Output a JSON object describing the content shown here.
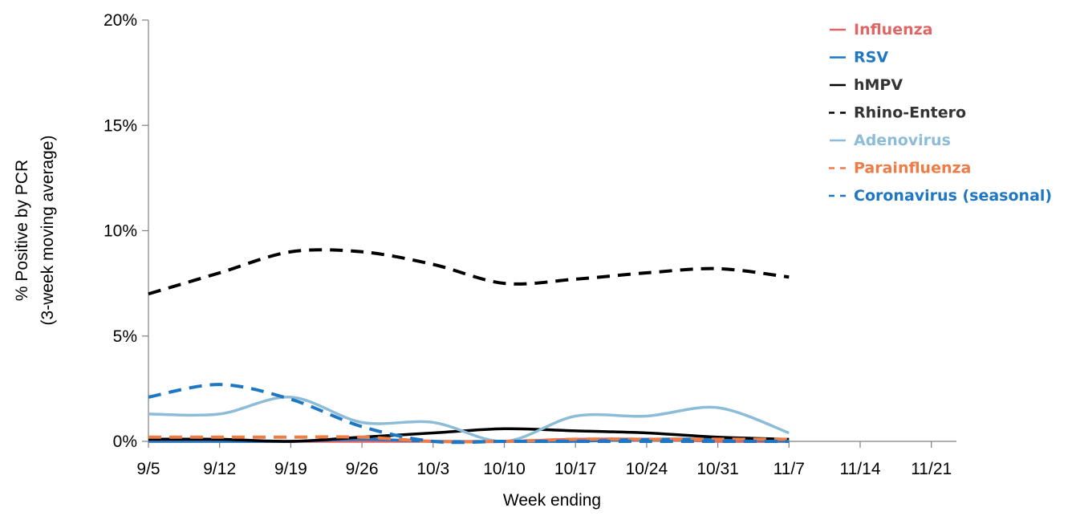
{
  "chart_data": {
    "type": "line",
    "title": "",
    "xlabel": "Week ending",
    "ylabel_line1": "% Positive by PCR",
    "ylabel_line2": "(3-week moving average)",
    "ylim": [
      0,
      20
    ],
    "y_ticks": [
      0,
      5,
      10,
      15,
      20
    ],
    "y_tick_labels": [
      "0%",
      "5%",
      "10%",
      "15%",
      "20%"
    ],
    "categories": [
      "9/5",
      "9/12",
      "9/19",
      "9/26",
      "10/3",
      "10/10",
      "10/17",
      "10/24",
      "10/31",
      "11/7",
      "11/14",
      "11/21"
    ],
    "grid": false,
    "legend_position": "top-right",
    "series": [
      {
        "name": "Influenza",
        "color": "#e06666",
        "dash": "solid",
        "values": [
          0.0,
          0.0,
          0.0,
          0.0,
          0.0,
          0.0,
          0.1,
          0.1,
          0.0,
          0.0,
          null,
          null
        ]
      },
      {
        "name": "RSV",
        "color": "#1f77c4",
        "dash": "solid",
        "values": [
          0.0,
          0.0,
          0.0,
          0.1,
          0.0,
          0.0,
          0.0,
          0.1,
          0.1,
          0.0,
          null,
          null
        ]
      },
      {
        "name": "hMPV",
        "color": "#000000",
        "dash": "solid",
        "values": [
          0.1,
          0.1,
          0.0,
          0.2,
          0.4,
          0.6,
          0.5,
          0.4,
          0.2,
          0.1,
          null,
          null
        ]
      },
      {
        "name": "Rhino-Entero",
        "color": "#000000",
        "dash": "dashed",
        "values": [
          7.0,
          8.0,
          9.0,
          9.0,
          8.4,
          7.5,
          7.7,
          8.0,
          8.2,
          7.8,
          null,
          null
        ]
      },
      {
        "name": "Adenovirus",
        "color": "#8dbcd8",
        "dash": "solid",
        "values": [
          1.3,
          1.3,
          2.1,
          0.9,
          0.9,
          0.0,
          1.2,
          1.2,
          1.6,
          0.4,
          null,
          null
        ]
      },
      {
        "name": "Parainfluenza",
        "color": "#ef7b45",
        "dash": "dashed",
        "values": [
          0.2,
          0.2,
          0.2,
          0.2,
          0.0,
          0.0,
          0.1,
          0.1,
          0.1,
          0.1,
          null,
          null
        ]
      },
      {
        "name": "Coronavirus (seasonal)",
        "color": "#1f77c4",
        "dash": "dashed",
        "values": [
          2.1,
          2.7,
          2.0,
          0.7,
          0.0,
          0.0,
          0.0,
          0.0,
          0.0,
          0.0,
          null,
          null
        ]
      }
    ]
  }
}
